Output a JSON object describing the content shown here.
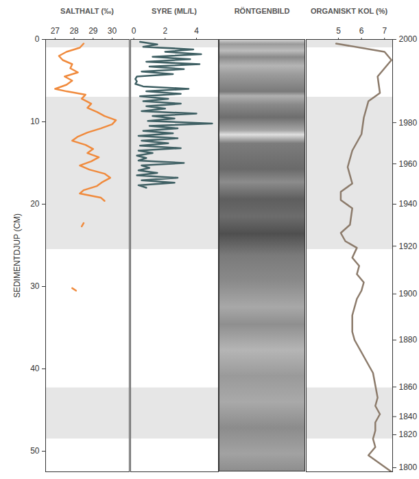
{
  "chart_data": {
    "type": "multi-panel",
    "ylabel": "SEDIMENTDJUP (CM)",
    "ylim": [
      0,
      52.5
    ],
    "yticks": [
      0,
      10,
      20,
      30,
      40,
      50
    ],
    "y2ticks": [
      2000,
      1980,
      1960,
      1940,
      1920,
      1900,
      1880,
      1860,
      1840,
      1820,
      1800
    ],
    "age_scale": {
      "depth": [
        0,
        10.1,
        15.1,
        20.0,
        25.1,
        30.9,
        36.5,
        42.2,
        45.8,
        48.0,
        52.0
      ],
      "year": [
        2000,
        1980,
        1960,
        1940,
        1920,
        1900,
        1880,
        1860,
        1840,
        1820,
        1800
      ]
    },
    "shaded_ranges": [
      [
        0,
        1
      ],
      [
        7,
        25.5
      ],
      [
        42.3,
        48.5
      ]
    ],
    "panels": [
      {
        "title": "SALTHALT (‰)",
        "type": "line",
        "color": "#f08a3c",
        "xlim": [
          26.5,
          30.9
        ],
        "xticks": [
          27,
          28,
          29,
          30
        ],
        "y": [
          0.5,
          1.0,
          1.5,
          2.0,
          2.5,
          3.0,
          3.5,
          4.0,
          4.5,
          5.0,
          5.5,
          6.0,
          6.3,
          6.7,
          7.2,
          7.8,
          8.3,
          8.8,
          9.3,
          9.8,
          10.3,
          10.8,
          11.3,
          11.8,
          12.3,
          12.8,
          13.3,
          13.8,
          14.3,
          14.8,
          15.3,
          15.8,
          16.3,
          16.8,
          17.3,
          17.8,
          18.3,
          18.7,
          19.2,
          19.6,
          null,
          22.3,
          22.7,
          null,
          30.2,
          30.5
        ],
        "values": [
          28.5,
          28.3,
          27.6,
          27.2,
          27.4,
          27.9,
          27.8,
          28.2,
          27.5,
          27.9,
          27.6,
          27.0,
          27.6,
          28.6,
          28.4,
          28.9,
          28.7,
          29.2,
          29.6,
          30.2,
          30.0,
          29.4,
          28.7,
          28.2,
          27.9,
          28.6,
          29.0,
          28.7,
          29.3,
          28.9,
          28.3,
          28.8,
          29.6,
          29.9,
          29.5,
          29.2,
          28.5,
          28.3,
          29.4,
          29.6,
          null,
          28.5,
          28.4,
          null,
          27.9,
          28.1
        ]
      },
      {
        "title": "SYRE (ML/L)",
        "type": "line",
        "color": "#3f6064",
        "xlim": [
          -0.2,
          5.4
        ],
        "xticks": [
          0,
          2,
          4
        ],
        "y": [
          0.3,
          0.6,
          0.9,
          1.2,
          1.5,
          1.8,
          2.1,
          2.4,
          2.7,
          3.0,
          3.3,
          3.6,
          3.9,
          4.2,
          4.5,
          4.8,
          5.1,
          5.4,
          5.7,
          6.0,
          6.3,
          6.6,
          6.9,
          7.2,
          7.5,
          7.8,
          8.1,
          8.4,
          8.7,
          9.0,
          9.3,
          9.6,
          9.9,
          10.2,
          10.5,
          10.8,
          11.1,
          11.4,
          11.7,
          12.0,
          12.3,
          12.6,
          12.9,
          13.2,
          13.5,
          13.8,
          14.1,
          14.4,
          14.7,
          15.0,
          15.3,
          15.6,
          15.9,
          16.2,
          16.5,
          16.8,
          17.1,
          17.4,
          17.7,
          18.0
        ],
        "values": [
          0.4,
          1.5,
          0.6,
          3.8,
          2.0,
          4.3,
          1.2,
          3.6,
          0.8,
          4.2,
          1.0,
          3.2,
          0.5,
          2.5,
          0.2,
          0.1,
          0.2,
          0.1,
          0.6,
          3.5,
          0.8,
          3.0,
          0.4,
          2.2,
          0.6,
          3.0,
          0.8,
          2.0,
          0.5,
          4.0,
          1.2,
          2.6,
          0.9,
          5.0,
          1.0,
          2.8,
          0.6,
          2.5,
          0.3,
          2.8,
          0.5,
          2.2,
          0.4,
          3.0,
          0.3,
          1.2,
          0.2,
          0.8,
          0.3,
          3.2,
          0.5,
          1.0,
          0.3,
          1.5,
          0.2,
          2.8,
          0.5,
          2.6,
          0.3,
          0.8
        ]
      },
      {
        "title": "RÖNTGENBILD",
        "type": "image"
      },
      {
        "title": "ORGANISKT KOL (%)",
        "type": "line",
        "color": "#8c7b6b",
        "xlim": [
          3.6,
          7.35
        ],
        "xticks": [
          5,
          6,
          7
        ],
        "y": [
          0.5,
          1.5,
          2.5,
          4.5,
          6.5,
          7.5,
          9.5,
          11.5,
          13.5,
          15.5,
          17.5,
          18.5,
          19.5,
          20.5,
          22.5,
          23.5,
          24.5,
          25.3,
          26.5,
          27.5,
          28.5,
          29.5,
          30.5,
          31.5,
          32.5,
          33.5,
          34.5,
          35.5,
          36.5,
          37.5,
          38.5,
          39.5,
          40.5,
          42.0,
          43.5,
          44.5,
          45.5,
          46.5,
          47.5,
          48.5,
          49.5,
          50.5,
          51.5,
          52.5
        ],
        "values": [
          4.9,
          7.0,
          7.3,
          6.7,
          6.8,
          6.3,
          6.1,
          6.0,
          5.6,
          5.4,
          5.6,
          5.1,
          5.1,
          5.6,
          5.5,
          5.1,
          5.3,
          5.8,
          5.6,
          5.9,
          5.8,
          6.1,
          6.0,
          5.8,
          5.7,
          5.6,
          5.6,
          5.6,
          5.7,
          5.9,
          6.1,
          6.3,
          6.5,
          6.6,
          6.7,
          6.6,
          6.8,
          6.6,
          6.6,
          6.5,
          6.6,
          6.3,
          6.8,
          7.3
        ]
      }
    ]
  }
}
